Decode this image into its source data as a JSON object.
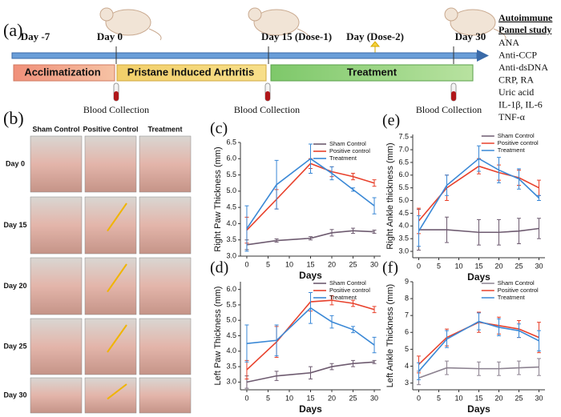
{
  "panel_a": {
    "label": "(a)",
    "days": [
      "Day -7",
      "Day 0",
      "Day 15 (Dose-1)",
      "Day (Dose-2)",
      "Day 30"
    ],
    "phases": [
      "Acclimatization",
      "Pristane Induced Arthritis",
      "Treatment"
    ],
    "blood_collection": [
      "Blood Collection",
      "Blood Collection",
      "Blood Collection"
    ],
    "study_title": [
      "Autoimmune",
      "Pannel study"
    ],
    "study_items": [
      "ANA",
      "Anti-CCP",
      "Anti-dsDNA",
      "CRP, RA",
      "Uric acid",
      "IL-1β, IL-6",
      "TNF-α"
    ]
  },
  "panel_b": {
    "label": "(b)",
    "columns": [
      "Sham Control",
      "Positive Control",
      "Treatment"
    ],
    "rows": [
      "Day 0",
      "Day 15",
      "Day 20",
      "Day 25",
      "Day 30"
    ]
  },
  "chart_data": [
    {
      "type": "line",
      "label": "(c)",
      "ylabel": "Right Paw Thickness (mm)",
      "xlabel": "Days",
      "x": [
        0,
        7,
        15,
        20,
        25,
        30
      ],
      "xlim": [
        -1.5,
        31.5
      ],
      "xticks": [
        0,
        5,
        10,
        15,
        20,
        25,
        30
      ],
      "ylim": [
        3.0,
        6.5
      ],
      "yticks": [
        {
          "value": 3,
          "label": "3.0"
        },
        3.5,
        {
          "value": 4,
          "label": "4.0"
        },
        4.5,
        {
          "value": 5,
          "label": "5.0"
        },
        5.5,
        {
          "value": 6,
          "label": "6.0"
        },
        6.5
      ],
      "legend": "top-right",
      "series": [
        {
          "name": "Sham Control",
          "color": "#6e5b70",
          "values": [
            3.35,
            3.48,
            3.55,
            3.72,
            3.78,
            3.75
          ],
          "errors": [
            0.15,
            0.05,
            0.05,
            0.1,
            0.08,
            0.05
          ]
        },
        {
          "name": "Positive control",
          "color": "#e8412c",
          "values": [
            3.8,
            4.75,
            5.85,
            5.6,
            5.45,
            5.25
          ],
          "errors": [
            0.4,
            0.3,
            0.15,
            0.15,
            0.1,
            0.1
          ]
        },
        {
          "name": "Treatment",
          "color": "#3a88d6",
          "values": [
            3.85,
            5.2,
            6.0,
            5.55,
            5.05,
            4.55
          ],
          "errors": [
            0.7,
            0.75,
            0.45,
            0.2,
            0.05,
            0.25
          ]
        }
      ]
    },
    {
      "type": "line",
      "label": "(d)",
      "ylabel": "Left Paw Thickness (mm)",
      "xlabel": "Days",
      "x": [
        0,
        7,
        15,
        20,
        25,
        30
      ],
      "xlim": [
        -1.5,
        31.5
      ],
      "xticks": [
        0,
        5,
        10,
        15,
        20,
        25,
        30
      ],
      "ylim": [
        2.75,
        6.25
      ],
      "yticks": [
        {
          "value": 3,
          "label": "3.0"
        },
        3.5,
        {
          "value": 4,
          "label": "4.0"
        },
        4.5,
        {
          "value": 5,
          "label": "5.0"
        },
        5.5,
        {
          "value": 6,
          "label": "6.0"
        }
      ],
      "legend": "top-right",
      "series": [
        {
          "name": "Sham Control",
          "color": "#6e5b70",
          "values": [
            3.0,
            3.2,
            3.3,
            3.5,
            3.6,
            3.65
          ],
          "errors": [
            0.2,
            0.15,
            0.2,
            0.1,
            0.1,
            0.05
          ]
        },
        {
          "name": "Positive control",
          "color": "#e8412c",
          "values": [
            3.4,
            4.3,
            5.6,
            5.65,
            5.55,
            5.35
          ],
          "errors": [
            0.3,
            0.5,
            0.3,
            0.15,
            0.1,
            0.1
          ]
        },
        {
          "name": "Treatment",
          "color": "#3a88d6",
          "values": [
            4.25,
            4.35,
            5.4,
            4.95,
            4.7,
            4.2
          ],
          "errors": [
            0.6,
            0.5,
            0.5,
            0.2,
            0.1,
            0.25
          ]
        }
      ]
    },
    {
      "type": "line",
      "label": "(e)",
      "ylabel": "Right Ankle thickness (mm)",
      "xlabel": "Days",
      "x": [
        0,
        7,
        15,
        20,
        25,
        30
      ],
      "xlim": [
        -1.5,
        31.5
      ],
      "xticks": [
        0,
        5,
        10,
        15,
        20,
        25,
        30
      ],
      "ylim": [
        2.75,
        7.6
      ],
      "yticks": [
        {
          "value": 3,
          "label": "3.0"
        },
        3.5,
        {
          "value": 4,
          "label": "4.0"
        },
        4.5,
        {
          "value": 5,
          "label": "5.0"
        },
        5.5,
        {
          "value": 6,
          "label": "6.0"
        },
        6.5,
        {
          "value": 7,
          "label": "7.0"
        },
        7.5
      ],
      "legend": "top-right",
      "series": [
        {
          "name": "Sham Control",
          "color": "#6e5b70",
          "values": [
            3.85,
            3.85,
            3.75,
            3.75,
            3.8,
            3.9
          ],
          "errors": [
            0.8,
            0.5,
            0.5,
            0.5,
            0.5,
            0.4
          ]
        },
        {
          "name": "Positive control",
          "color": "#e8412c",
          "values": [
            4.2,
            5.5,
            6.35,
            6.1,
            5.9,
            5.5
          ],
          "errors": [
            0.5,
            0.5,
            0.3,
            0.3,
            0.3,
            0.3
          ]
        },
        {
          "name": "Treatment",
          "color": "#3a88d6",
          "values": [
            3.8,
            5.6,
            6.65,
            6.2,
            5.85,
            5.1
          ],
          "errors": [
            0.6,
            0.4,
            0.5,
            0.5,
            0.4,
            0.1
          ]
        }
      ]
    },
    {
      "type": "line",
      "label": "(f)",
      "ylabel": "Left Ankle Thickness (mm)",
      "xlabel": "Days",
      "x": [
        0,
        7,
        15,
        20,
        25,
        30
      ],
      "xlim": [
        -1.5,
        31.5
      ],
      "xticks": [
        0,
        5,
        10,
        15,
        20,
        25,
        30
      ],
      "ylim": [
        2.6,
        9.0
      ],
      "yticks": [
        3,
        4,
        5,
        6,
        7,
        8,
        9
      ],
      "legend": "top-right",
      "series": [
        {
          "name": "Sham Control",
          "color": "#8c8290",
          "values": [
            3.3,
            3.9,
            3.85,
            3.85,
            3.9,
            3.95
          ],
          "errors": [
            0.4,
            0.4,
            0.4,
            0.4,
            0.4,
            0.5
          ]
        },
        {
          "name": "Positive control",
          "color": "#e8412c",
          "values": [
            4.1,
            5.7,
            6.6,
            6.4,
            6.2,
            5.7
          ],
          "errors": [
            0.5,
            0.5,
            0.6,
            0.5,
            0.5,
            0.9
          ]
        },
        {
          "name": "Treatment",
          "color": "#3a88d6",
          "values": [
            3.7,
            5.6,
            6.65,
            6.3,
            6.1,
            5.5
          ],
          "errors": [
            0.5,
            0.5,
            0.5,
            0.5,
            0.4,
            0.6
          ]
        }
      ]
    }
  ]
}
